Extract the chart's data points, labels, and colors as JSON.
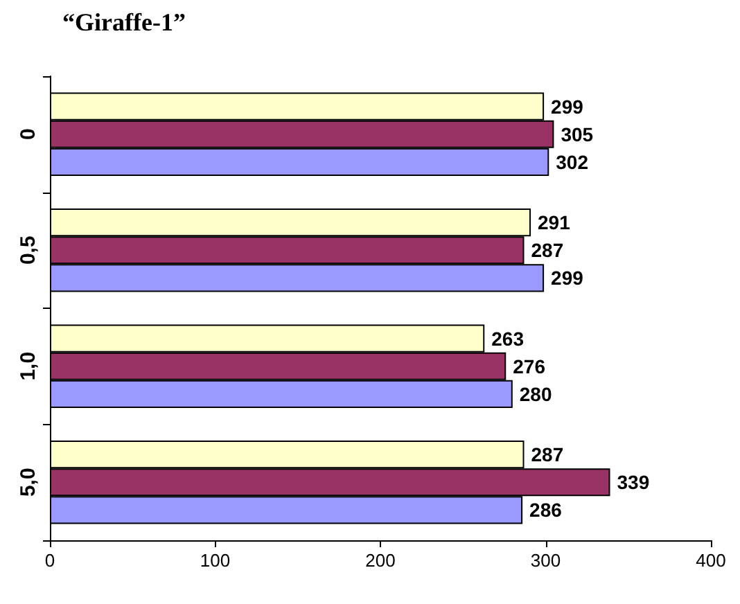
{
  "chart_data": {
    "type": "bar",
    "orientation": "horizontal",
    "title": "“Giraffe-1”",
    "categories": [
      "0",
      "0,5",
      "1,0",
      "5,0"
    ],
    "series": [
      {
        "color": "#ffffcc",
        "values": [
          299,
          291,
          263,
          287
        ]
      },
      {
        "color": "#993366",
        "values": [
          305,
          287,
          276,
          339
        ]
      },
      {
        "color": "#9999ff",
        "values": [
          302,
          299,
          280,
          286
        ]
      }
    ],
    "xlim": [
      0,
      400
    ],
    "xticks": [
      0,
      100,
      200,
      300,
      400
    ],
    "data_labels": true,
    "grid": false
  }
}
